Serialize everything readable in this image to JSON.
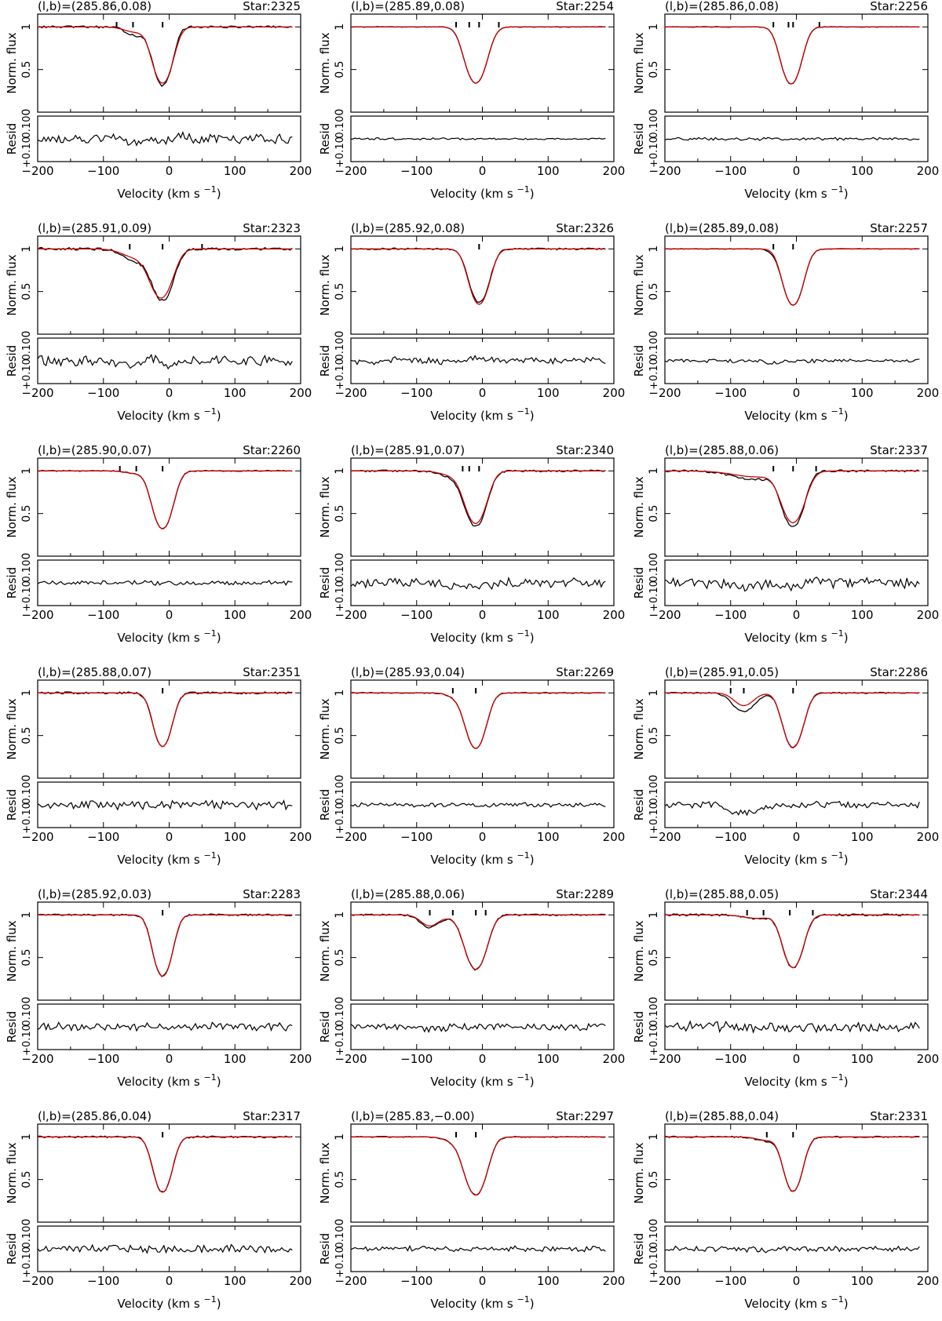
{
  "figure": {
    "x_label_prefix": "Velocity (km s",
    "x_label_exp": "−1",
    "x_label_suffix": ")",
    "flux_label": "Norm. flux",
    "resid_label": "Resid",
    "x_ticks": [
      "−200",
      "−100",
      "0",
      "100",
      "200"
    ],
    "flux_ticks": [
      "1",
      "0.5",
      "0"
    ],
    "resid_ticks": [
      "0.10",
      "+0.10"
    ],
    "model_color": "#cc0000",
    "data_color": "#000000"
  },
  "chart_data": [
    {
      "type": "line",
      "title": "(l,b)=(285.86,0.08)",
      "star": "Star:2325",
      "xlim": [
        -200,
        200
      ],
      "ylim": [
        0,
        1.15
      ],
      "resid_ylim": [
        -0.1,
        0.1
      ],
      "components": [
        {
          "v": -10,
          "depth": 0.69,
          "width": 12
        },
        {
          "v": -50,
          "depth": 0.1,
          "width": 15
        }
      ],
      "model": [
        {
          "v": -10,
          "depth": 0.66,
          "width": 13
        },
        {
          "v": -52,
          "depth": 0.06,
          "width": 16
        }
      ],
      "markers": [
        -80,
        -55,
        -10
      ],
      "noise": 0.012,
      "resid_noise": 0.02
    },
    {
      "type": "line",
      "title": "(l,b)=(285.89,0.08)",
      "star": "Star:2254",
      "xlim": [
        -200,
        200
      ],
      "ylim": [
        0,
        1.15
      ],
      "resid_ylim": [
        -0.1,
        0.1
      ],
      "components": [
        {
          "v": -10,
          "depth": 0.66,
          "width": 14
        }
      ],
      "model": [
        {
          "v": -10,
          "depth": 0.66,
          "width": 14
        }
      ],
      "markers": [
        -40,
        -20,
        -5,
        25
      ],
      "noise": 0.004,
      "resid_noise": 0.004
    },
    {
      "type": "line",
      "title": "(l,b)=(285.86,0.08)",
      "star": "Star:2256",
      "xlim": [
        -200,
        200
      ],
      "ylim": [
        0,
        1.15
      ],
      "resid_ylim": [
        -0.1,
        0.1
      ],
      "components": [
        {
          "v": -8,
          "depth": 0.67,
          "width": 13
        }
      ],
      "model": [
        {
          "v": -8,
          "depth": 0.67,
          "width": 13
        }
      ],
      "markers": [
        -35,
        -12,
        -5,
        35
      ],
      "noise": 0.004,
      "resid_noise": 0.006
    },
    {
      "type": "line",
      "title": "(l,b)=(285.91,0.09)",
      "star": "Star:2323",
      "xlim": [
        -200,
        200
      ],
      "ylim": [
        0,
        1.15
      ],
      "resid_ylim": [
        -0.1,
        0.1
      ],
      "components": [
        {
          "v": -10,
          "depth": 0.6,
          "width": 14
        },
        {
          "v": -50,
          "depth": 0.15,
          "width": 18
        }
      ],
      "model": [
        {
          "v": -12,
          "depth": 0.57,
          "width": 15
        },
        {
          "v": -50,
          "depth": 0.1,
          "width": 20
        }
      ],
      "markers": [
        -60,
        -10,
        50
      ],
      "noise": 0.015,
      "resid_noise": 0.02
    },
    {
      "type": "line",
      "title": "(l,b)=(285.92,0.08)",
      "star": "Star:2326",
      "xlim": [
        -200,
        200
      ],
      "ylim": [
        0,
        1.15
      ],
      "resid_ylim": [
        -0.1,
        0.1
      ],
      "components": [
        {
          "v": -5,
          "depth": 0.63,
          "width": 13
        }
      ],
      "model": [
        {
          "v": -5,
          "depth": 0.65,
          "width": 13
        }
      ],
      "markers": [
        -5
      ],
      "noise": 0.01,
      "resid_noise": 0.015
    },
    {
      "type": "line",
      "title": "(l,b)=(285.89,0.08)",
      "star": "Star:2257",
      "xlim": [
        -200,
        200
      ],
      "ylim": [
        0,
        1.15
      ],
      "resid_ylim": [
        -0.1,
        0.1
      ],
      "components": [
        {
          "v": -5,
          "depth": 0.66,
          "width": 13
        },
        {
          "v": -35,
          "depth": 0.02,
          "width": 10
        }
      ],
      "model": [
        {
          "v": -5,
          "depth": 0.66,
          "width": 13
        }
      ],
      "markers": [
        -35,
        -5
      ],
      "noise": 0.004,
      "resid_noise": 0.008
    },
    {
      "type": "line",
      "title": "(l,b)=(285.90,0.07)",
      "star": "Star:2260",
      "xlim": [
        -200,
        200
      ],
      "ylim": [
        0,
        1.15
      ],
      "resid_ylim": [
        -0.1,
        0.1
      ],
      "components": [
        {
          "v": -10,
          "depth": 0.68,
          "width": 13
        },
        {
          "v": -50,
          "depth": 0.03,
          "width": 15
        }
      ],
      "model": [
        {
          "v": -10,
          "depth": 0.68,
          "width": 13
        },
        {
          "v": -50,
          "depth": 0.03,
          "width": 15
        }
      ],
      "markers": [
        -75,
        -50,
        -10
      ],
      "noise": 0.006,
      "resid_noise": 0.01
    },
    {
      "type": "line",
      "title": "(l,b)=(285.91,0.07)",
      "star": "Star:2340",
      "xlim": [
        -200,
        200
      ],
      "ylim": [
        0,
        1.15
      ],
      "resid_ylim": [
        -0.1,
        0.1
      ],
      "components": [
        {
          "v": -10,
          "depth": 0.64,
          "width": 14
        },
        {
          "v": -40,
          "depth": 0.08,
          "width": 20
        }
      ],
      "model": [
        {
          "v": -10,
          "depth": 0.61,
          "width": 14
        },
        {
          "v": -40,
          "depth": 0.06,
          "width": 20
        }
      ],
      "markers": [
        -30,
        -20,
        -5
      ],
      "noise": 0.01,
      "resid_noise": 0.02
    },
    {
      "type": "line",
      "title": "(l,b)=(285.88,0.06)",
      "star": "Star:2337",
      "xlim": [
        -200,
        200
      ],
      "ylim": [
        0,
        1.15
      ],
      "resid_ylim": [
        -0.1,
        0.1
      ],
      "components": [
        {
          "v": -5,
          "depth": 0.65,
          "width": 14
        },
        {
          "v": -60,
          "depth": 0.1,
          "width": 35
        }
      ],
      "model": [
        {
          "v": -5,
          "depth": 0.6,
          "width": 15
        },
        {
          "v": -60,
          "depth": 0.07,
          "width": 35
        }
      ],
      "markers": [
        -35,
        -5,
        30
      ],
      "noise": 0.012,
      "resid_noise": 0.022
    },
    {
      "type": "line",
      "title": "(l,b)=(285.88,0.07)",
      "star": "Star:2351",
      "xlim": [
        -200,
        200
      ],
      "ylim": [
        0,
        1.15
      ],
      "resid_ylim": [
        -0.1,
        0.1
      ],
      "components": [
        {
          "v": -10,
          "depth": 0.63,
          "width": 12
        }
      ],
      "model": [
        {
          "v": -10,
          "depth": 0.63,
          "width": 12
        }
      ],
      "markers": [
        -10
      ],
      "noise": 0.012,
      "resid_noise": 0.02
    },
    {
      "type": "line",
      "title": "(l,b)=(285.93,0.04)",
      "star": "Star:2269",
      "xlim": [
        -200,
        200
      ],
      "ylim": [
        0,
        1.15
      ],
      "resid_ylim": [
        -0.1,
        0.1
      ],
      "components": [
        {
          "v": -10,
          "depth": 0.65,
          "width": 13
        },
        {
          "v": -40,
          "depth": 0.05,
          "width": 12
        }
      ],
      "model": [
        {
          "v": -10,
          "depth": 0.65,
          "width": 13
        },
        {
          "v": -40,
          "depth": 0.05,
          "width": 12
        }
      ],
      "markers": [
        -45,
        -10
      ],
      "noise": 0.006,
      "resid_noise": 0.01
    },
    {
      "type": "line",
      "title": "(l,b)=(285.91,0.05)",
      "star": "Star:2286",
      "xlim": [
        -200,
        200
      ],
      "ylim": [
        0,
        1.15
      ],
      "resid_ylim": [
        -0.1,
        0.1
      ],
      "components": [
        {
          "v": -5,
          "depth": 0.64,
          "width": 13
        },
        {
          "v": -80,
          "depth": 0.22,
          "width": 16
        }
      ],
      "model": [
        {
          "v": -5,
          "depth": 0.64,
          "width": 13
        },
        {
          "v": -80,
          "depth": 0.15,
          "width": 14
        }
      ],
      "markers": [
        -100,
        -80,
        -5
      ],
      "noise": 0.008,
      "resid_noise": 0.015
    },
    {
      "type": "line",
      "title": "(l,b)=(285.92,0.03)",
      "star": "Star:2283",
      "xlim": [
        -200,
        200
      ],
      "ylim": [
        0,
        1.15
      ],
      "resid_ylim": [
        -0.1,
        0.1
      ],
      "components": [
        {
          "v": -10,
          "depth": 0.72,
          "width": 12
        }
      ],
      "model": [
        {
          "v": -10,
          "depth": 0.72,
          "width": 12
        }
      ],
      "markers": [
        -10
      ],
      "noise": 0.01,
      "resid_noise": 0.018
    },
    {
      "type": "line",
      "title": "(l,b)=(285.88,0.06)",
      "star": "Star:2289",
      "xlim": [
        -200,
        200
      ],
      "ylim": [
        0,
        1.15
      ],
      "resid_ylim": [
        -0.1,
        0.1
      ],
      "components": [
        {
          "v": -10,
          "depth": 0.64,
          "width": 14
        },
        {
          "v": -80,
          "depth": 0.15,
          "width": 13
        },
        {
          "v": -45,
          "depth": 0.03,
          "width": 12
        }
      ],
      "model": [
        {
          "v": -10,
          "depth": 0.64,
          "width": 14
        },
        {
          "v": -80,
          "depth": 0.13,
          "width": 13
        },
        {
          "v": -45,
          "depth": 0.03,
          "width": 12
        }
      ],
      "markers": [
        -80,
        -45,
        -10,
        5
      ],
      "noise": 0.01,
      "resid_noise": 0.015
    },
    {
      "type": "line",
      "title": "(l,b)=(285.88,0.05)",
      "star": "Star:2344",
      "xlim": [
        -200,
        200
      ],
      "ylim": [
        0,
        1.15
      ],
      "resid_ylim": [
        -0.1,
        0.1
      ],
      "components": [
        {
          "v": -5,
          "depth": 0.62,
          "width": 13
        },
        {
          "v": -60,
          "depth": 0.05,
          "width": 20
        }
      ],
      "model": [
        {
          "v": -5,
          "depth": 0.62,
          "width": 13
        },
        {
          "v": -60,
          "depth": 0.04,
          "width": 20
        }
      ],
      "markers": [
        -75,
        -50,
        -10,
        25
      ],
      "noise": 0.012,
      "resid_noise": 0.022
    },
    {
      "type": "line",
      "title": "(l,b)=(285.86,0.04)",
      "star": "Star:2317",
      "xlim": [
        -200,
        200
      ],
      "ylim": [
        0,
        1.15
      ],
      "resid_ylim": [
        -0.1,
        0.1
      ],
      "components": [
        {
          "v": -10,
          "depth": 0.65,
          "width": 12
        }
      ],
      "model": [
        {
          "v": -10,
          "depth": 0.65,
          "width": 12
        }
      ],
      "markers": [
        -10
      ],
      "noise": 0.01,
      "resid_noise": 0.018
    },
    {
      "type": "line",
      "title": "(l,b)=(285.83,−0.00)",
      "star": "Star:2297",
      "xlim": [
        -200,
        200
      ],
      "ylim": [
        0,
        1.15
      ],
      "resid_ylim": [
        -0.1,
        0.1
      ],
      "components": [
        {
          "v": -10,
          "depth": 0.68,
          "width": 14
        },
        {
          "v": -40,
          "depth": 0.06,
          "width": 15
        }
      ],
      "model": [
        {
          "v": -10,
          "depth": 0.68,
          "width": 14
        },
        {
          "v": -40,
          "depth": 0.06,
          "width": 15
        }
      ],
      "markers": [
        -40,
        -10
      ],
      "noise": 0.006,
      "resid_noise": 0.012
    },
    {
      "type": "line",
      "title": "(l,b)=(285.88,0.04)",
      "star": "Star:2331",
      "xlim": [
        -200,
        200
      ],
      "ylim": [
        0,
        1.15
      ],
      "resid_ylim": [
        -0.1,
        0.1
      ],
      "components": [
        {
          "v": -5,
          "depth": 0.64,
          "width": 12
        },
        {
          "v": -45,
          "depth": 0.05,
          "width": 15
        }
      ],
      "model": [
        {
          "v": -5,
          "depth": 0.64,
          "width": 12
        },
        {
          "v": -45,
          "depth": 0.04,
          "width": 15
        }
      ],
      "markers": [
        -45,
        -5
      ],
      "noise": 0.008,
      "resid_noise": 0.012
    }
  ]
}
